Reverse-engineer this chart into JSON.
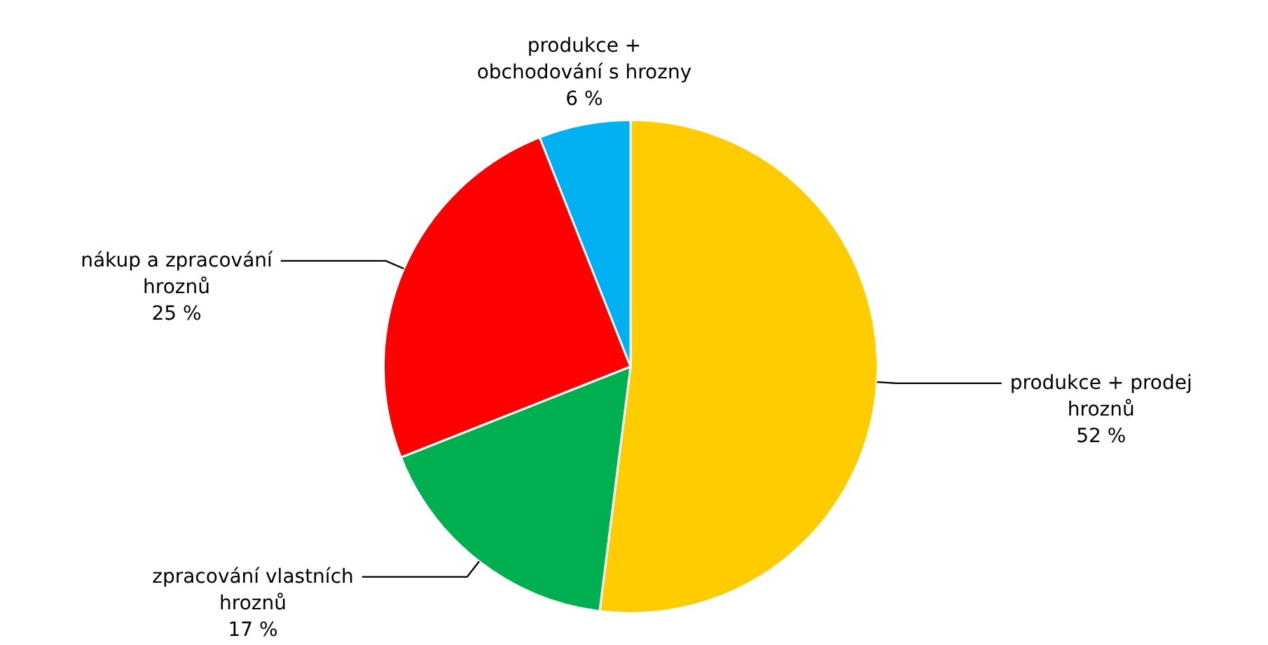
{
  "chart_data": {
    "type": "pie",
    "categories": [
      "produkce + prodej hroznů",
      "zpracování vlastních hroznů",
      "nákup a zpracování hroznů",
      "produkce + obchodování s hrozny"
    ],
    "values": [
      52,
      17,
      25,
      6
    ],
    "colors": [
      "#ffcc00",
      "#00b050",
      "#ff0000",
      "#00b0f0"
    ],
    "value_labels": [
      "52 %",
      "17 %",
      "25 %",
      "6 %"
    ],
    "legend": false
  }
}
